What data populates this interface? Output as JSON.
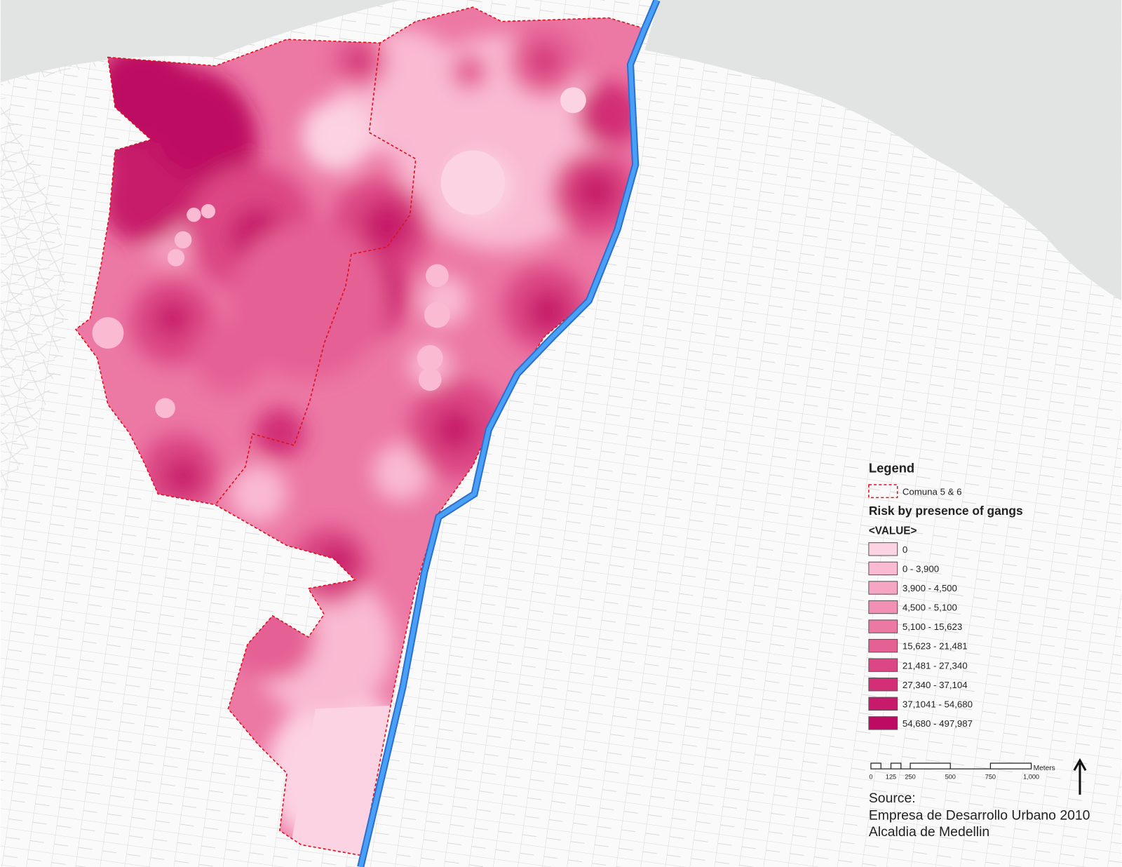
{
  "legend": {
    "title": "Legend",
    "boundary": "Comuna 5 & 6",
    "layer_title": "Risk  by presence of gangs",
    "field": "<VALUE>",
    "classes": [
      {
        "label": "0",
        "color": "#fcd3e2"
      },
      {
        "label": "0 - 3,900",
        "color": "#f9bad2"
      },
      {
        "label": "3,900 - 4,500",
        "color": "#f6a5c3"
      },
      {
        "label": "4,500 - 5,100",
        "color": "#f18fb4"
      },
      {
        "label": "5,100 - 15,623",
        "color": "#ec78a4"
      },
      {
        "label": "15,623 - 21,481",
        "color": "#e56094"
      },
      {
        "label": "21,481 - 27,340",
        "color": "#dc4684"
      },
      {
        "label": "27,340 - 37,104",
        "color": "#d22f76"
      },
      {
        "label": "37,1041 - 54,680",
        "color": "#c71a6a"
      },
      {
        "label": "54,680 - 497,987",
        "color": "#bd0a62"
      }
    ]
  },
  "scale_bar": {
    "unit": "Meters",
    "ticks": [
      "0",
      "125",
      "250",
      "500",
      "750",
      "1,000"
    ]
  },
  "source": {
    "heading": "Source:",
    "lines": [
      "Empresa de Desarrollo Urbano 2010",
      "Alcaldia de Medellin"
    ]
  }
}
